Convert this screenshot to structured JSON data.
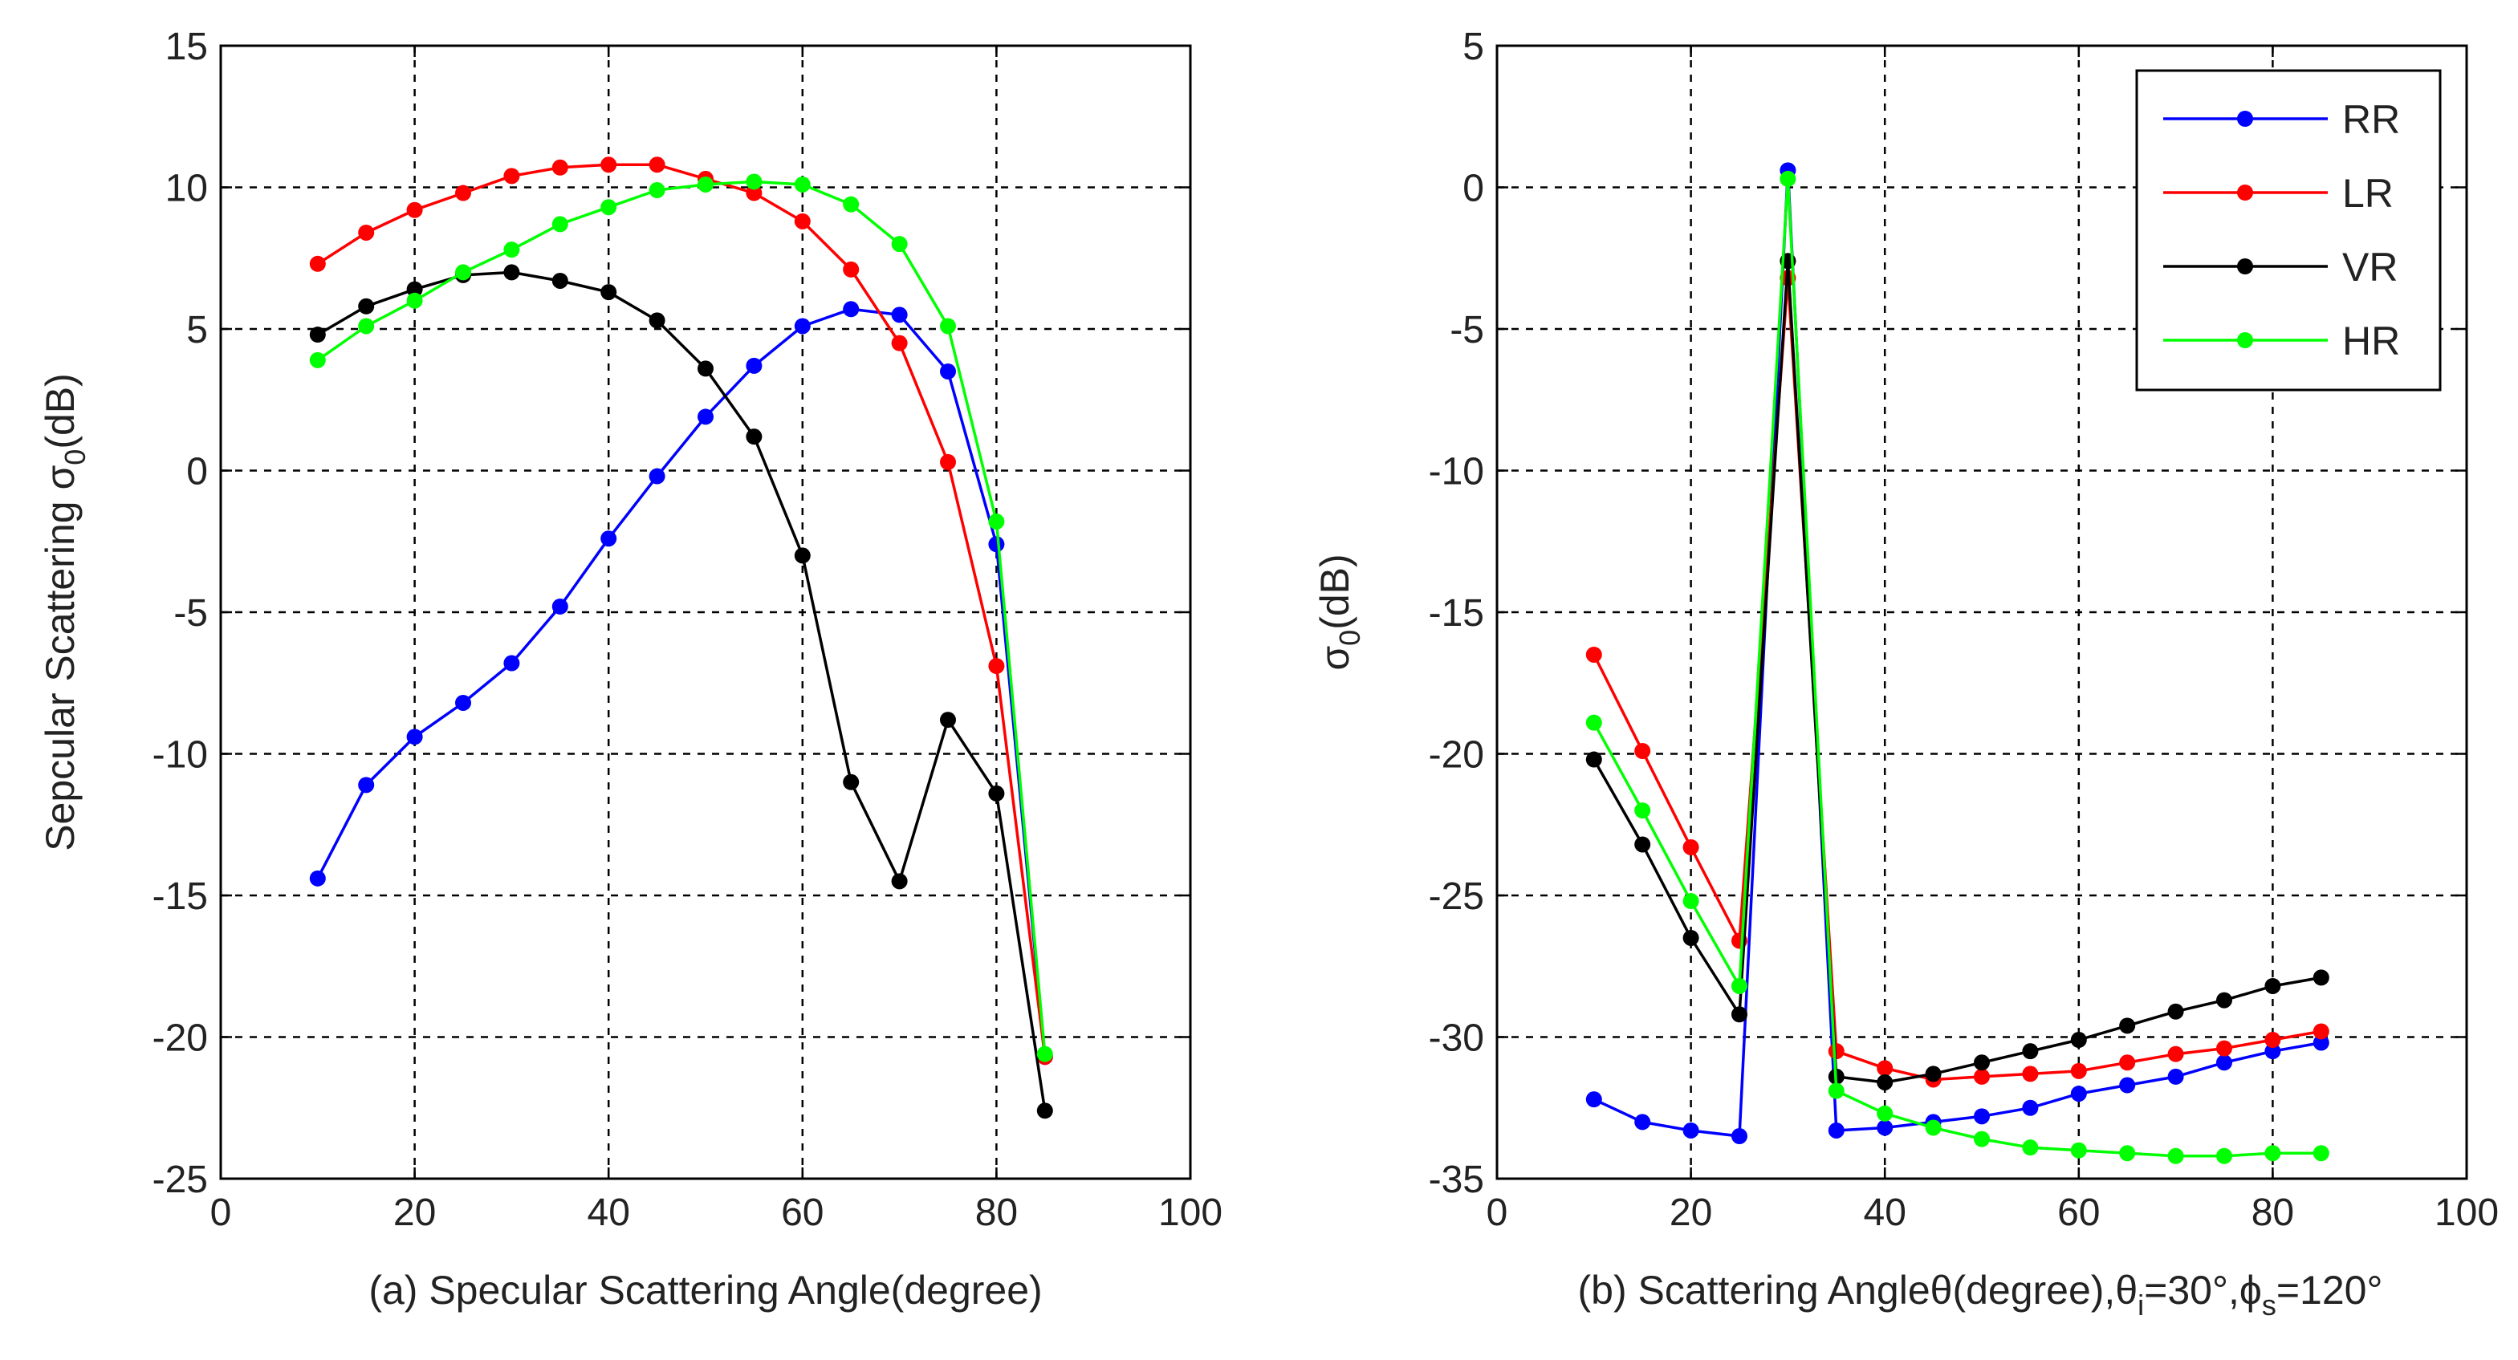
{
  "chart_data": [
    {
      "type": "line",
      "panel": "a",
      "xlabel": "(a) Specular Scattering Angle(degree)",
      "ylabel_main": "Sepcular Scattering σ",
      "ylabel_sub": "0",
      "ylabel_tail": "(dB)",
      "xlim": [
        0,
        100
      ],
      "ylim": [
        -25,
        15
      ],
      "xticks": [
        0,
        20,
        40,
        60,
        80,
        100
      ],
      "yticks": [
        -25,
        -20,
        -15,
        -10,
        -5,
        0,
        5,
        10,
        15
      ],
      "grid": true,
      "x": [
        10,
        15,
        20,
        25,
        30,
        35,
        40,
        45,
        50,
        55,
        60,
        65,
        70,
        75,
        80,
        85
      ],
      "series": [
        {
          "name": "RR",
          "color": "#0000ff",
          "values": [
            -14.4,
            -11.1,
            -9.4,
            -8.2,
            -6.8,
            -4.8,
            -2.4,
            -0.2,
            1.9,
            3.7,
            5.1,
            5.7,
            5.5,
            3.5,
            -2.6,
            -20.7
          ]
        },
        {
          "name": "LR",
          "color": "#ff0000",
          "values": [
            7.3,
            8.4,
            9.2,
            9.8,
            10.4,
            10.7,
            10.8,
            10.8,
            10.3,
            9.8,
            8.8,
            7.1,
            4.5,
            0.3,
            -6.9,
            -20.7
          ]
        },
        {
          "name": "VR",
          "color": "#000000",
          "values": [
            4.8,
            5.8,
            6.4,
            6.9,
            7.0,
            6.7,
            6.3,
            5.3,
            3.6,
            1.2,
            -3.0,
            -11.0,
            -14.5,
            -8.8,
            -11.4,
            -22.6
          ]
        },
        {
          "name": "HR",
          "color": "#00ff00",
          "values": [
            3.9,
            5.1,
            6.0,
            7.0,
            7.8,
            8.7,
            9.3,
            9.9,
            10.1,
            10.2,
            10.1,
            9.4,
            8.0,
            5.1,
            -1.8,
            -20.6
          ]
        }
      ]
    },
    {
      "type": "line",
      "panel": "b",
      "xlabel_parts": [
        "(b) Scattering Angleθ(degree),θ",
        "i",
        "=30°,ϕ",
        "s",
        "=120°"
      ],
      "ylabel_main": "σ",
      "ylabel_sub": "0",
      "ylabel_tail": "(dB)",
      "xlim": [
        0,
        100
      ],
      "ylim": [
        -35,
        5
      ],
      "xticks": [
        0,
        20,
        40,
        60,
        80,
        100
      ],
      "yticks": [
        -35,
        -30,
        -25,
        -20,
        -15,
        -10,
        -5,
        0,
        5
      ],
      "grid": true,
      "legend_position": "top-right",
      "x": [
        10,
        15,
        20,
        25,
        30,
        35,
        40,
        45,
        50,
        55,
        60,
        65,
        70,
        75,
        80,
        85
      ],
      "series": [
        {
          "name": "RR",
          "color": "#0000ff",
          "values": [
            -32.2,
            -33.0,
            -33.3,
            -33.5,
            0.6,
            -33.3,
            -33.2,
            -33.0,
            -32.8,
            -32.5,
            -32.0,
            -31.7,
            -31.4,
            -30.9,
            -30.5,
            -30.2
          ]
        },
        {
          "name": "LR",
          "color": "#ff0000",
          "values": [
            -16.5,
            -19.9,
            -23.3,
            -26.6,
            -3.2,
            -30.5,
            -31.1,
            -31.5,
            -31.4,
            -31.3,
            -31.2,
            -30.9,
            -30.6,
            -30.4,
            -30.1,
            -29.8
          ]
        },
        {
          "name": "VR",
          "color": "#000000",
          "values": [
            -20.2,
            -23.2,
            -26.5,
            -29.2,
            -2.6,
            -31.4,
            -31.6,
            -31.3,
            -30.9,
            -30.5,
            -30.1,
            -29.6,
            -29.1,
            -28.7,
            -28.2,
            -27.9
          ]
        },
        {
          "name": "HR",
          "color": "#00ff00",
          "values": [
            -18.9,
            -22.0,
            -25.2,
            -28.2,
            0.3,
            -31.9,
            -32.7,
            -33.2,
            -33.6,
            -33.9,
            -34.0,
            -34.1,
            -34.2,
            -34.2,
            -34.1,
            -34.1
          ]
        }
      ],
      "legend": [
        "RR",
        "LR",
        "VR",
        "HR"
      ]
    }
  ]
}
